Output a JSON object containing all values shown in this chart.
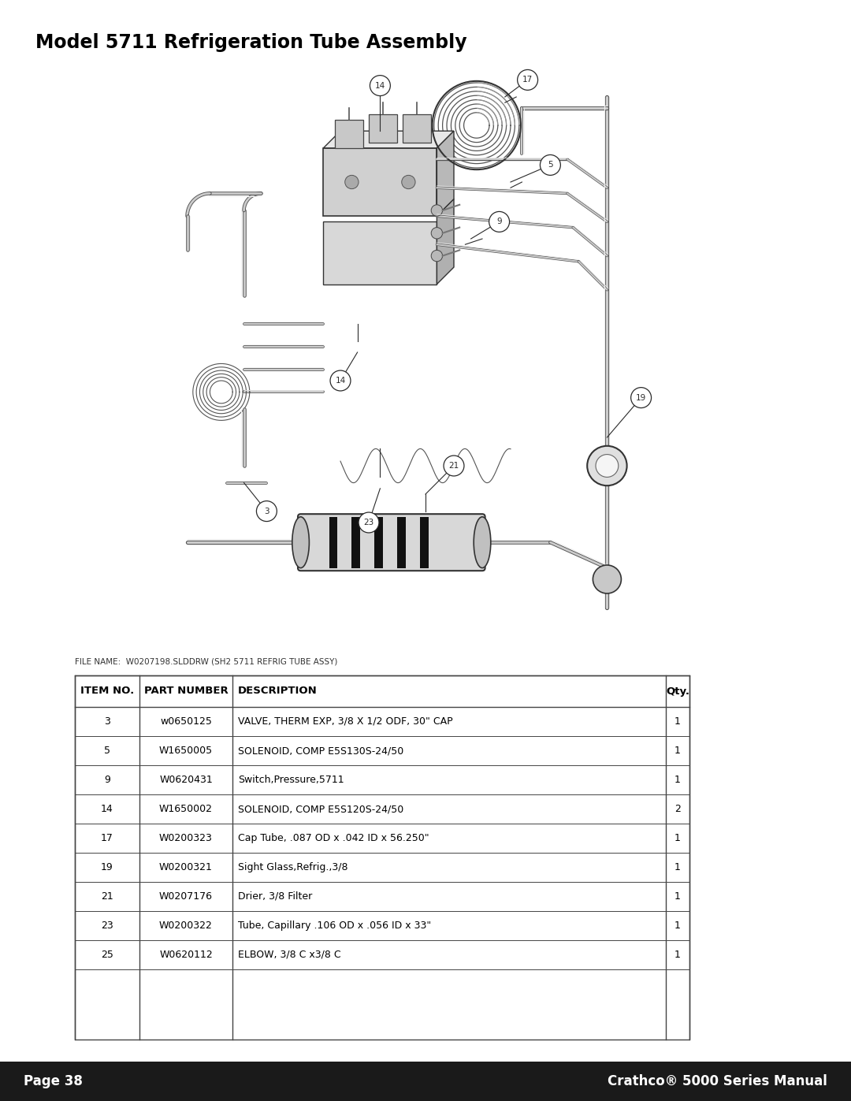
{
  "title": "Model 5711 Refrigeration Tube Assembly",
  "title_fontsize": 17,
  "bg_color": "#ffffff",
  "filename_label": "FILE NAME:  W0207198.SLDDRW (SH2 5711 REFRIG TUBE ASSY)",
  "filename_fontsize": 7.5,
  "table_title_row": [
    "ITEM NO.",
    "PART NUMBER",
    "DESCRIPTION",
    "Qty."
  ],
  "table_data": [
    [
      "3",
      "w0650125",
      "VALVE, THERM EXP, 3/8 X 1/2 ODF, 30\" CAP",
      "1"
    ],
    [
      "5",
      "W1650005",
      "SOLENOID, COMP E5S130S-24/50",
      "1"
    ],
    [
      "9",
      "W0620431",
      "Switch,Pressure,5711",
      "1"
    ],
    [
      "14",
      "W1650002",
      "SOLENOID, COMP E5S120S-24/50",
      "2"
    ],
    [
      "17",
      "W0200323",
      "Cap Tube, .087 OD x .042 ID x 56.250\"",
      "1"
    ],
    [
      "19",
      "W0200321",
      "Sight Glass,Refrig.,3/8",
      "1"
    ],
    [
      "21",
      "W0207176",
      "Drier, 3/8 Filter",
      "1"
    ],
    [
      "23",
      "W0200322",
      "Tube, Capillary .106 OD x .056 ID x 33\"",
      "1"
    ],
    [
      "25",
      "W0620112",
      "ELBOW, 3/8 C x3/8 C",
      "1"
    ]
  ],
  "footer_left": "Page 38",
  "footer_right": "Crathco® 5000 Series Manual",
  "footer_bg": "#1a1a1a",
  "footer_text_color": "#ffffff",
  "footer_fontsize": 12
}
